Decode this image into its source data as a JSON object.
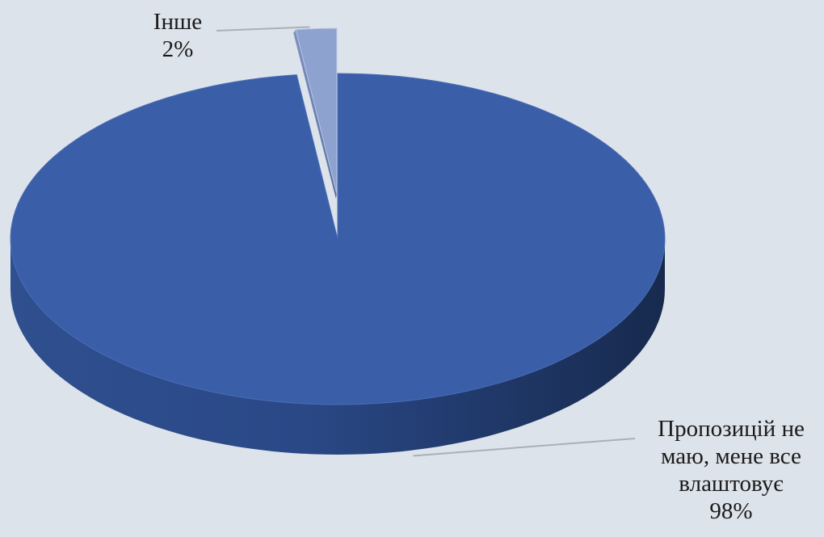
{
  "chart_data": {
    "type": "pie",
    "title": "",
    "slices": [
      {
        "label": "Пропозицій не маю, мене все влаштовує",
        "label_lines": [
          "Пропозицій не",
          "маю, мене все",
          "влаштовує"
        ],
        "value": 98,
        "value_label": "98%",
        "color": "#3a5fa8"
      },
      {
        "label": "Інше",
        "label_lines": [
          "Інше"
        ],
        "value": 2,
        "value_label": "2%",
        "color": "#8ea2d0"
      }
    ],
    "style": "3d-exploded",
    "legend": "none"
  }
}
